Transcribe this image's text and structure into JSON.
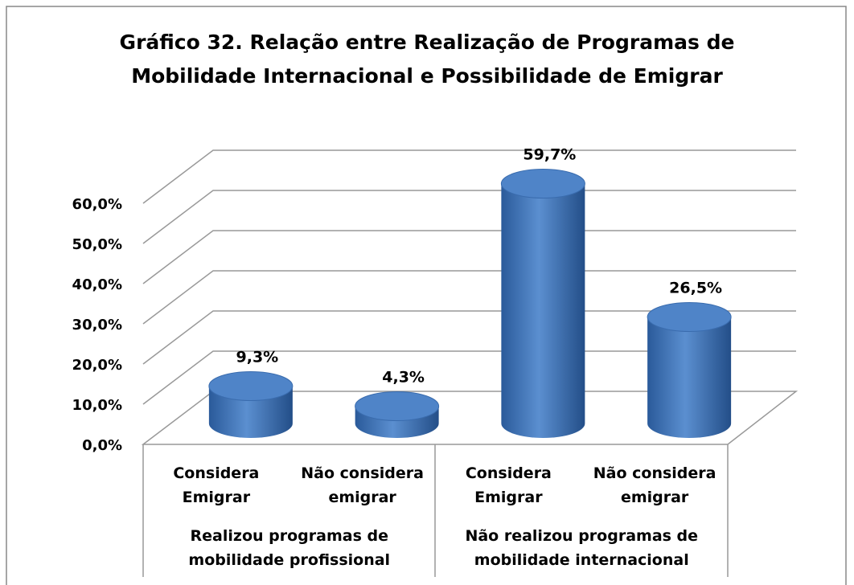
{
  "chart_data": {
    "type": "bar3d",
    "title": "Gráfico 32. Relação entre Realização de Programas de Mobilidade Internacional e Possibilidade de Emigrar",
    "categories": [
      "Considera Emigrar",
      "Não considera emigrar",
      "Considera Emigrar",
      "Não considera emigrar"
    ],
    "groups": [
      "Realizou programas de mobilidade profissional",
      "Não realizou programas de mobilidade internacional"
    ],
    "values": [
      9.3,
      4.3,
      59.7,
      26.5
    ],
    "value_labels": [
      "9,3%",
      "4,3%",
      "59,7%",
      "26,5%"
    ],
    "color": "#4a7ebf",
    "ylim": [
      0,
      60
    ],
    "yticks": [
      {
        "value": 0,
        "label": "0,0%"
      },
      {
        "value": 10,
        "label": "10,0%"
      },
      {
        "value": 20,
        "label": "20,0%"
      },
      {
        "value": 30,
        "label": "30,0%"
      },
      {
        "value": 40,
        "label": "40,0%"
      },
      {
        "value": 50,
        "label": "50,0%"
      },
      {
        "value": 60,
        "label": "60,0%"
      }
    ],
    "grid": true
  }
}
